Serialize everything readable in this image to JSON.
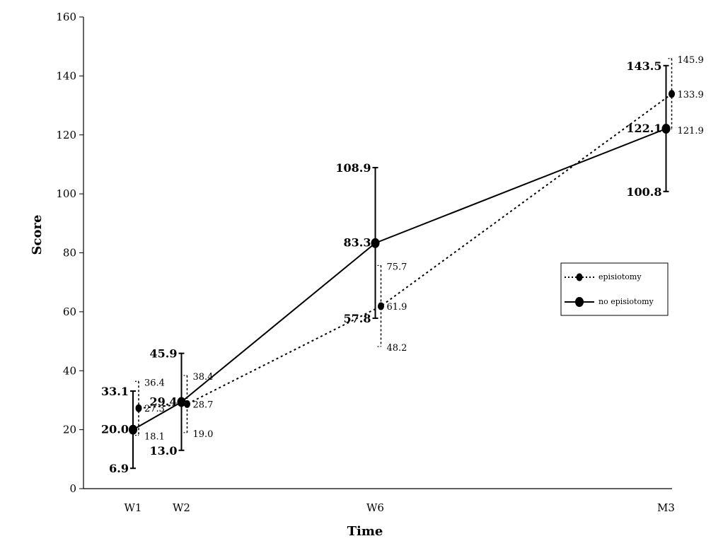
{
  "chart_data": {
    "type": "line",
    "xlabel": "Time",
    "ylabel": "Score",
    "ylim": [
      0,
      160
    ],
    "yticks": [
      0,
      20,
      40,
      60,
      80,
      100,
      120,
      140,
      160
    ],
    "categories": [
      "W1",
      "W2",
      "W6",
      "M3"
    ],
    "x_positions": [
      1,
      2,
      6,
      12
    ],
    "legend_position": "right",
    "series": [
      {
        "name": "episiotomy",
        "line_style": "dotted",
        "values": [
          27.3,
          28.7,
          61.9,
          133.9
        ],
        "upper": [
          36.4,
          38.4,
          75.7,
          145.9
        ],
        "lower": [
          18.1,
          19.0,
          48.2,
          121.9
        ],
        "value_labels": [
          "27.3",
          "28.7",
          "61.9",
          "133.9"
        ],
        "upper_labels": [
          "36.4",
          "38.4",
          "75.7",
          "145.9"
        ],
        "lower_labels": [
          "18.1",
          "19.0",
          "48.2",
          "121.9"
        ]
      },
      {
        "name": "no episiotomy",
        "line_style": "solid",
        "values": [
          20.0,
          29.4,
          83.3,
          122.1
        ],
        "upper": [
          33.1,
          45.9,
          108.9,
          143.5
        ],
        "lower": [
          6.9,
          13.0,
          57.8,
          100.8
        ],
        "value_labels": [
          "20.0",
          "29.4",
          "83.3",
          "122.1"
        ],
        "upper_labels": [
          "33.1",
          "45.9",
          "108.9",
          "143.5"
        ],
        "lower_labels": [
          "6.9",
          "13.0",
          "57.8",
          "100.8"
        ]
      }
    ]
  }
}
